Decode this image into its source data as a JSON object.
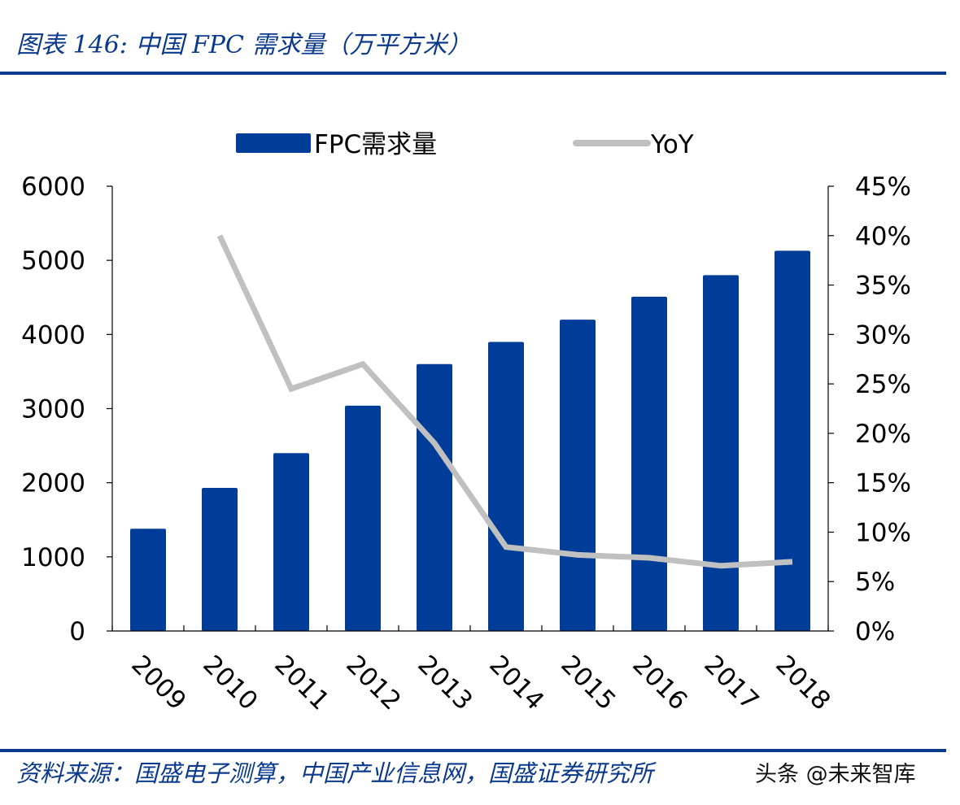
{
  "header": {
    "title": "图表 146:  中国 FPC 需求量（万平方米）"
  },
  "footer": {
    "source": "资料来源：国盛电子测算，中国产业信息网，国盛证券研究所",
    "watermark": "头条 @未来智库"
  },
  "colors": {
    "bar": "#003d99",
    "line": "#c0c0c0",
    "brand": "#0b3a8c",
    "axis": "#000000"
  },
  "chart_data": {
    "type": "bar",
    "categories": [
      "2009",
      "2010",
      "2011",
      "2012",
      "2013",
      "2014",
      "2015",
      "2016",
      "2017",
      "2018"
    ],
    "series": [
      {
        "name": "FPC需求量",
        "type": "bar",
        "axis": "left",
        "values": [
          1380,
          1930,
          2400,
          3040,
          3600,
          3900,
          4200,
          4510,
          4800,
          5130
        ]
      },
      {
        "name": "YoY",
        "type": "line",
        "axis": "right",
        "values": [
          null,
          0.4,
          0.245,
          0.27,
          0.19,
          0.085,
          0.077,
          0.074,
          0.066,
          0.07
        ]
      }
    ],
    "y_left": {
      "min": 0,
      "max": 6000,
      "ticks": [
        "0",
        "1000",
        "2000",
        "3000",
        "4000",
        "5000",
        "6000"
      ]
    },
    "y_right": {
      "min": 0,
      "max": 0.45,
      "ticks": [
        "0%",
        "5%",
        "10%",
        "15%",
        "20%",
        "25%",
        "30%",
        "35%",
        "40%",
        "45%"
      ]
    },
    "legend": [
      {
        "label": "FPC需求量",
        "kind": "bar"
      },
      {
        "label": "YoY",
        "kind": "line"
      }
    ],
    "legend_position": "top",
    "grid": false
  }
}
